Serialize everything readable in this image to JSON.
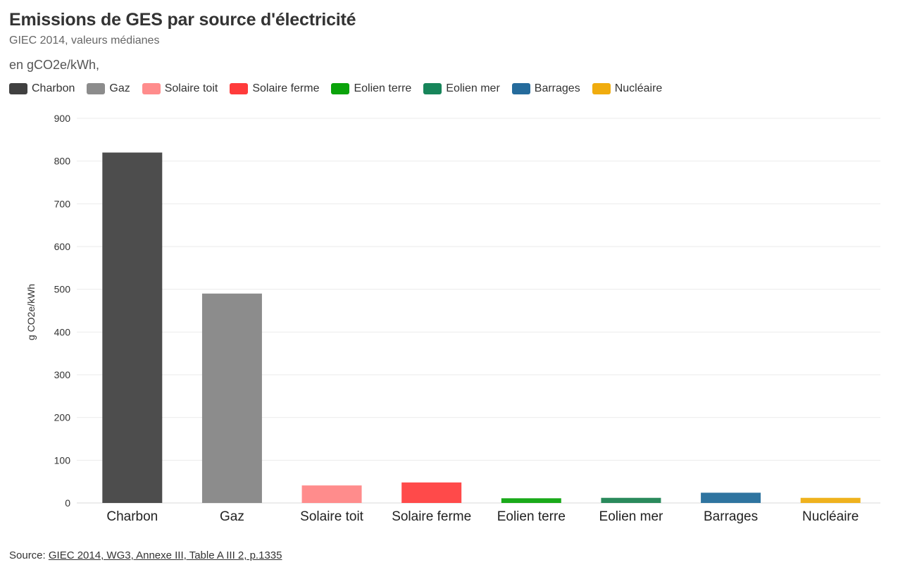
{
  "chart_title": "Emissions de GES par source d'électricité",
  "chart_subtitle": "GIEC 2014, valeurs médianes",
  "unit_label": "en gCO2e/kWh,",
  "source": {
    "prefix": "Source: ",
    "link_text": "GIEC 2014, WG3, Annexe III, Table A III 2, p.1335"
  },
  "chart_data": {
    "type": "bar",
    "title": "Emissions de GES par source d'électricité",
    "subtitle": "GIEC 2014, valeurs médianes",
    "xlabel": "",
    "ylabel": "g CO2e/kWh",
    "ylim": [
      0,
      900
    ],
    "yticks": [
      0,
      100,
      200,
      300,
      400,
      500,
      600,
      700,
      800,
      900
    ],
    "grid": true,
    "legend_position": "top-left",
    "categories": [
      "Charbon",
      "Gaz",
      "Solaire toit",
      "Solaire ferme",
      "Eolien terre",
      "Eolien mer",
      "Barrages",
      "Nucléaire"
    ],
    "values": [
      820,
      490,
      41,
      48,
      11,
      12,
      24,
      12
    ],
    "colors": [
      "#4d4d4d",
      "#8c8c8c",
      "#ff8c8c",
      "#ff4a4a",
      "#1aaa1a",
      "#2a8a5c",
      "#2f74a0",
      "#efb21e"
    ],
    "legend": [
      {
        "label": "Charbon",
        "color": "#404040"
      },
      {
        "label": "Gaz",
        "color": "#8c8c8c"
      },
      {
        "label": "Solaire toit",
        "color": "#ff8c8c"
      },
      {
        "label": "Solaire ferme",
        "color": "#ff3b3b"
      },
      {
        "label": "Eolien terre",
        "color": "#0aa30a"
      },
      {
        "label": "Eolien mer",
        "color": "#17855a"
      },
      {
        "label": "Barrages",
        "color": "#256b9c"
      },
      {
        "label": "Nucléaire",
        "color": "#f0ac0e"
      }
    ]
  }
}
